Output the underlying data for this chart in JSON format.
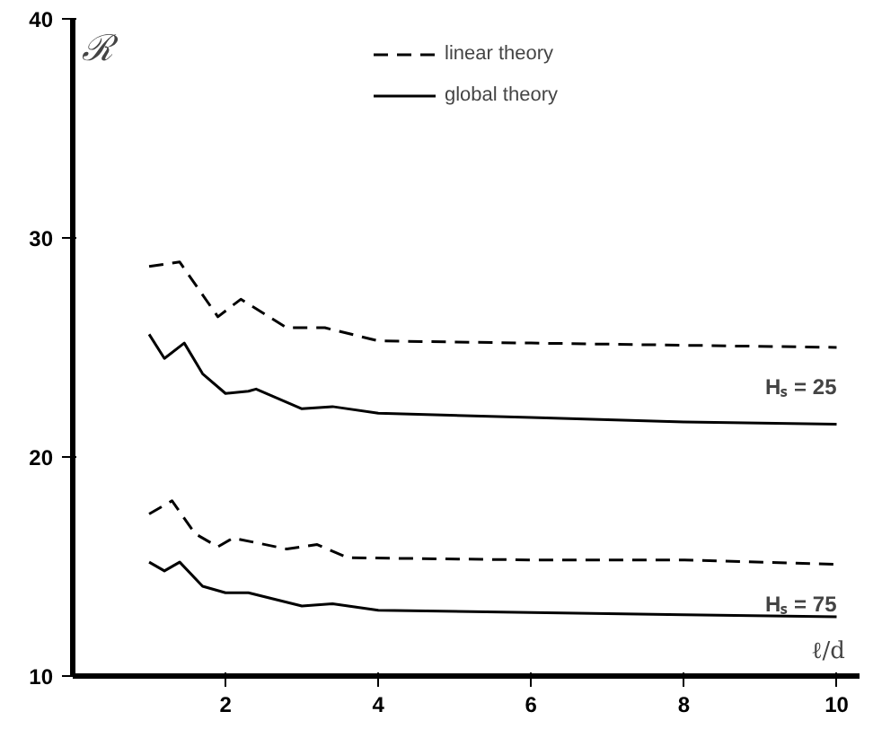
{
  "chart_data": {
    "type": "line",
    "xlabel": "ℓ/d",
    "ylabel": "ℛ",
    "xlim": [
      0,
      10.3
    ],
    "ylim": [
      10,
      40
    ],
    "xticks": [
      2,
      4,
      6,
      8,
      10
    ],
    "yticks": [
      10,
      20,
      30,
      40
    ],
    "grid": false,
    "legend": "top",
    "series": [
      {
        "name": "linear theory",
        "color": "#000000",
        "line_style": "dashed",
        "x": [
          1,
          1.4,
          1.9,
          2.2,
          2.8,
          3.3,
          4,
          6,
          8,
          10
        ],
        "values": [
          28.7,
          28.9,
          26.4,
          27.2,
          25.9,
          25.9,
          25.3,
          25.2,
          25.1,
          25.0
        ]
      },
      {
        "name": "global theory",
        "color": "#000000",
        "line_style": "solid",
        "x": [
          1,
          1.2,
          1.46,
          1.7,
          2.0,
          2.3,
          2.4,
          3,
          3.4,
          4,
          6,
          8,
          10
        ],
        "values": [
          25.6,
          24.5,
          25.2,
          23.8,
          22.9,
          23.0,
          23.1,
          22.2,
          22.3,
          22.0,
          21.8,
          21.6,
          21.5
        ]
      },
      {
        "color": "#000000",
        "line_style": "dashed",
        "x": [
          1,
          1.3,
          1.6,
          1.9,
          2.1,
          2.8,
          3.2,
          3.6,
          6,
          8,
          10
        ],
        "values": [
          17.4,
          18.0,
          16.5,
          15.9,
          16.3,
          15.8,
          16.0,
          15.4,
          15.3,
          15.3,
          15.1
        ]
      },
      {
        "color": "#000000",
        "line_style": "solid",
        "x": [
          1,
          1.2,
          1.4,
          1.7,
          2.0,
          2.3,
          3,
          3.4,
          4,
          6,
          8,
          10
        ],
        "values": [
          15.2,
          14.8,
          15.2,
          14.1,
          13.8,
          13.8,
          13.2,
          13.3,
          13.0,
          12.9,
          12.8,
          12.7
        ]
      }
    ],
    "annotations": [
      "Hₛ = 25",
      "Hₛ = 75"
    ]
  }
}
